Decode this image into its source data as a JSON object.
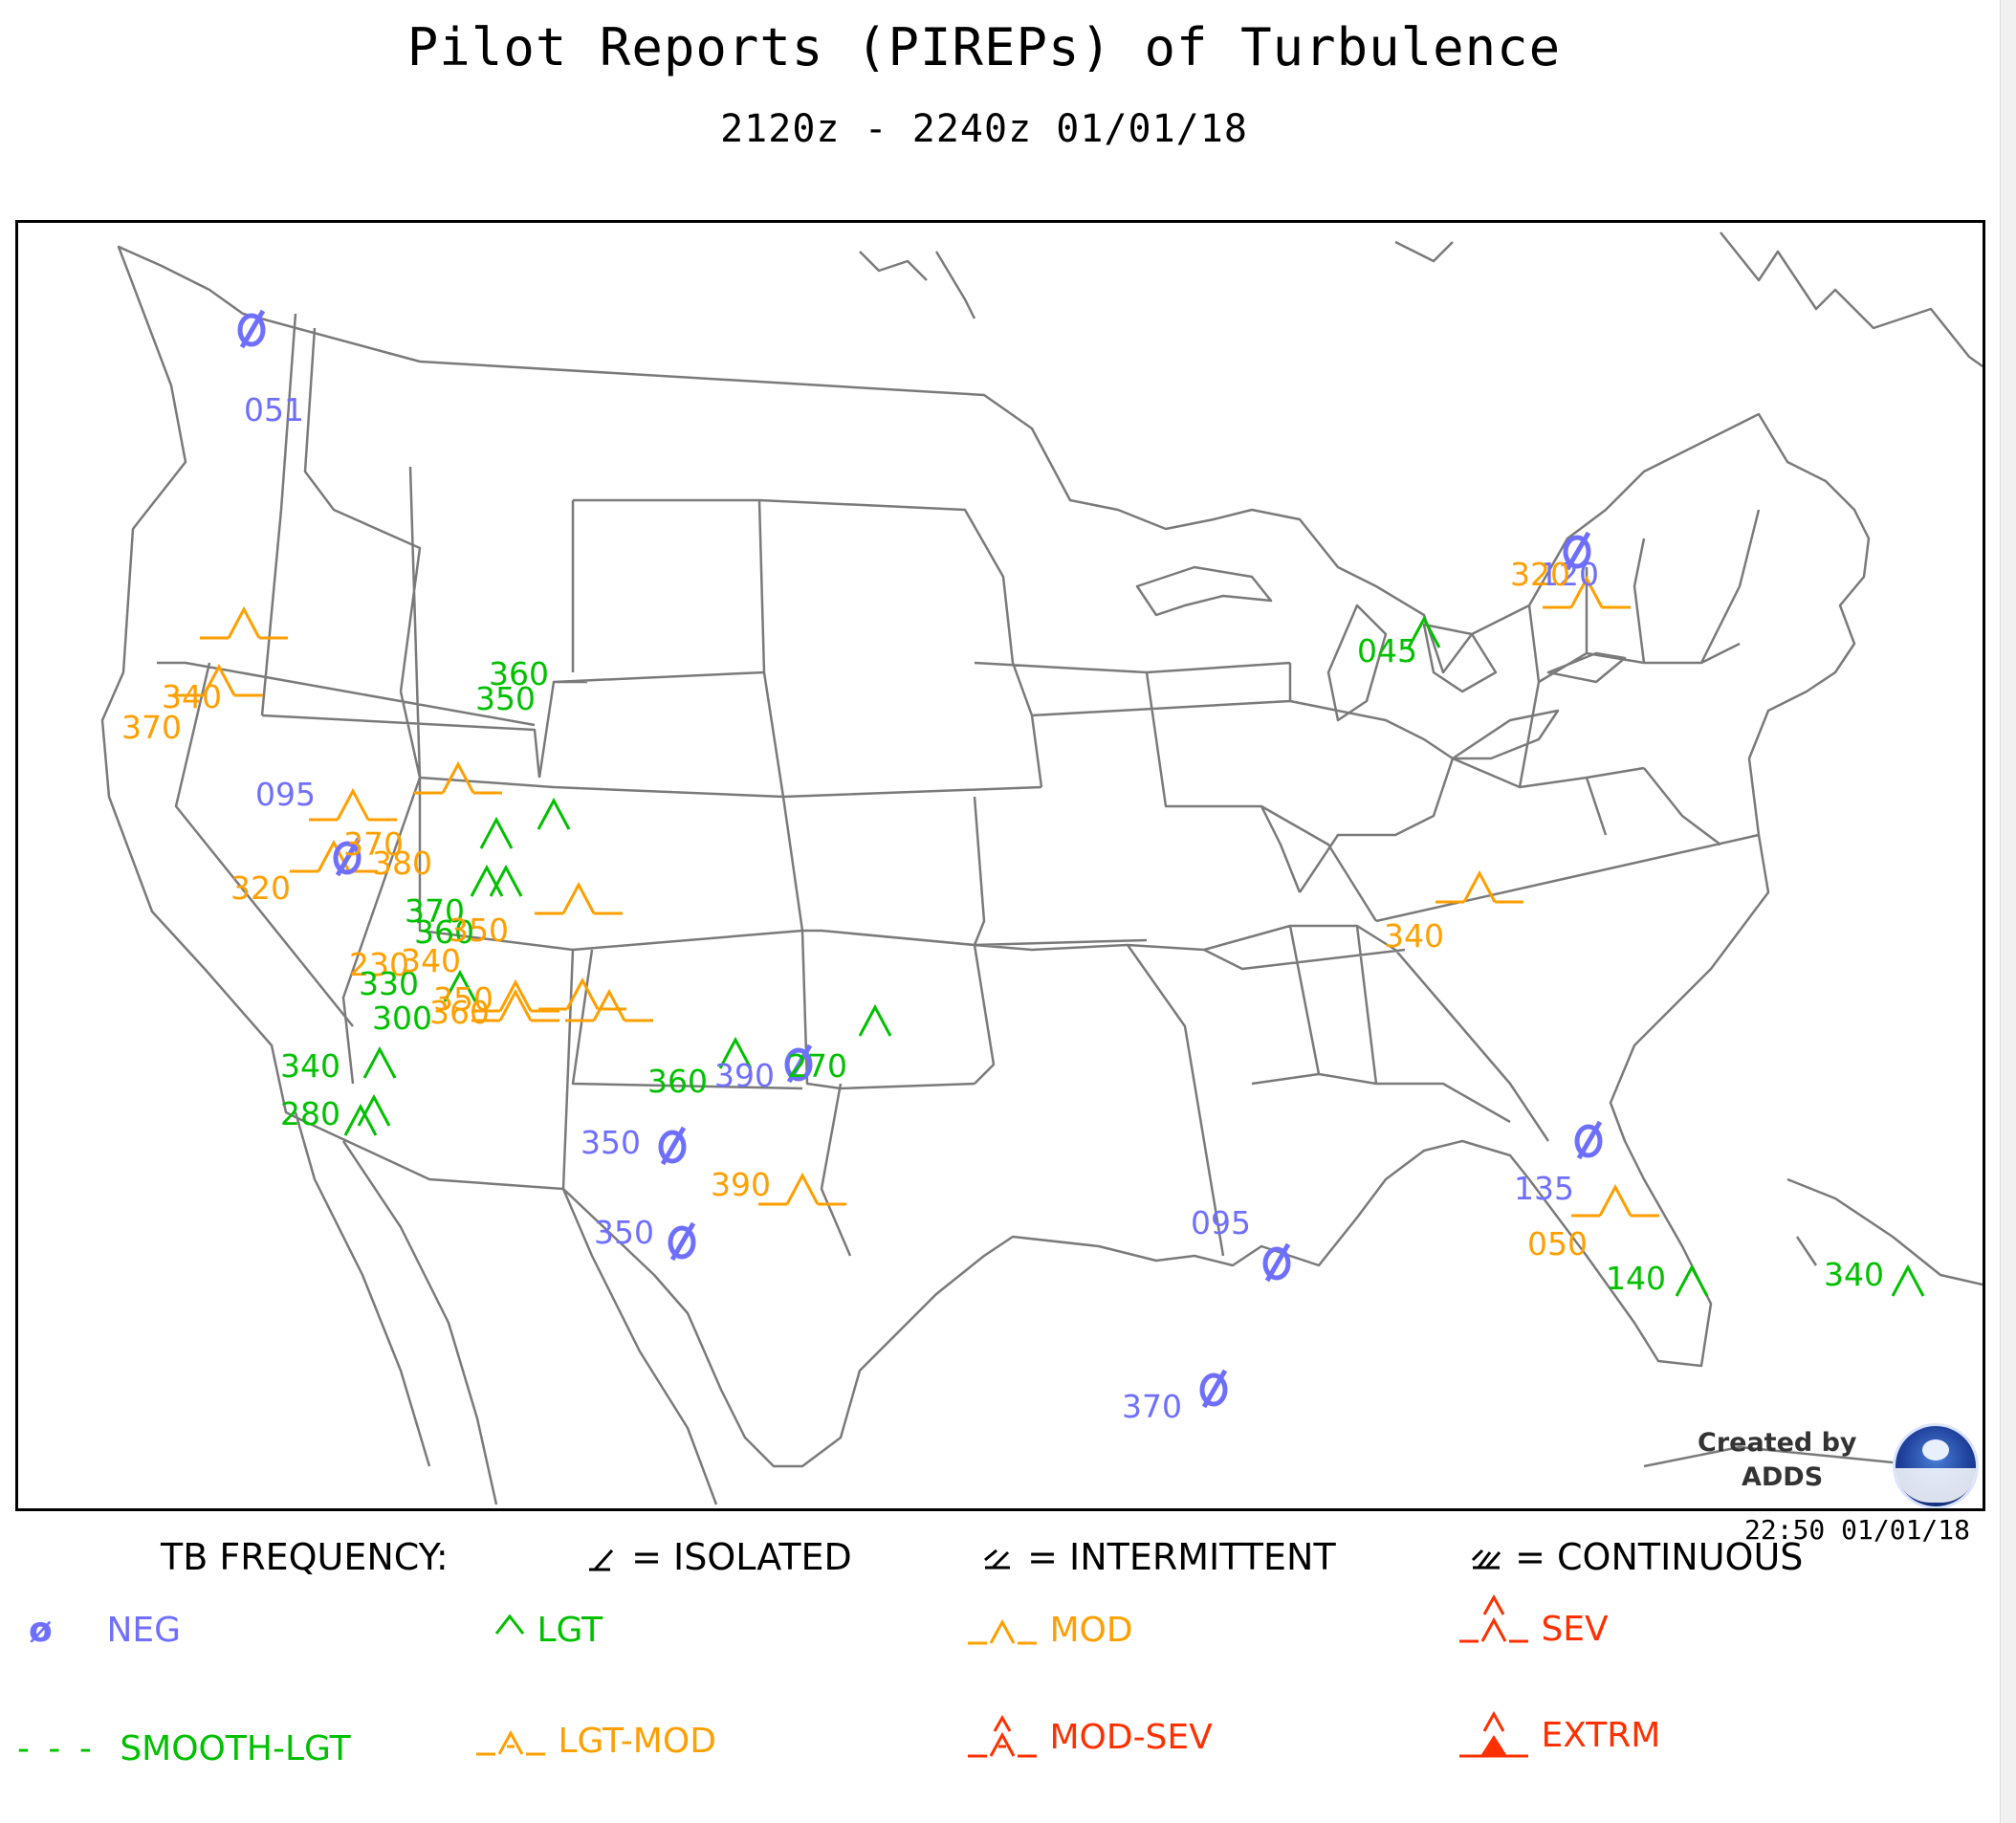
{
  "title": "Pilot Reports (PIREPs) of Turbulence",
  "subtitle": "2120z - 2240z  01/01/18",
  "created_by_line1": "Created by",
  "created_by_line2": "ADDS",
  "timestamp": "22:50 01/01/18",
  "colors": {
    "neg": "#6f6fff",
    "lgt": "#00c000",
    "mod": "#ff9f00",
    "sev": "#ff3000",
    "border": "#7a7a7a"
  },
  "legend": {
    "frequency_label": "TB FREQUENCY:",
    "isolated": "= ISOLATED",
    "intermittent": "= INTERMITTENT",
    "continuous": "= CONTINUOUS",
    "neg": "NEG",
    "lgt": "LGT",
    "mod": "MOD",
    "sev": "SEV",
    "smooth_lgt": "SMOOTH-LGT",
    "lgt_mod": "LGT-MOD",
    "mod_sev": "MOD-SEV",
    "extrm": "EXTRM"
  },
  "reports": [
    {
      "type": "neg",
      "label": "051"
    },
    {
      "type": "neg",
      "label": "120"
    },
    {
      "type": "mod",
      "label": "320"
    },
    {
      "type": "lgt",
      "label": "045"
    },
    {
      "type": "mod",
      "label": "340"
    },
    {
      "type": "mod",
      "label": "370"
    },
    {
      "type": "mod",
      "label": "370"
    },
    {
      "type": "mod",
      "label": "380"
    },
    {
      "type": "mod",
      "label": "320"
    },
    {
      "type": "neg",
      "label": "095"
    },
    {
      "type": "lgt",
      "label": "360"
    },
    {
      "type": "lgt",
      "label": "350"
    },
    {
      "type": "lgt",
      "label": "370"
    },
    {
      "type": "lgt",
      "label": "360"
    },
    {
      "type": "mod",
      "label": "350"
    },
    {
      "type": "mod",
      "label": "230"
    },
    {
      "type": "lgt",
      "label": "330"
    },
    {
      "type": "mod",
      "label": "340"
    },
    {
      "type": "mod",
      "label": "350"
    },
    {
      "type": "mod",
      "label": "360"
    },
    {
      "type": "lgt",
      "label": "300"
    },
    {
      "type": "lgt",
      "label": "340"
    },
    {
      "type": "lgt",
      "label": "280"
    },
    {
      "type": "lgt",
      "label": "360"
    },
    {
      "type": "neg",
      "label": "390"
    },
    {
      "type": "lgt",
      "label": "270"
    },
    {
      "type": "neg",
      "label": "350"
    },
    {
      "type": "mod",
      "label": "390"
    },
    {
      "type": "neg",
      "label": "350"
    },
    {
      "type": "neg",
      "label": "095"
    },
    {
      "type": "neg",
      "label": "135"
    },
    {
      "type": "mod",
      "label": "050"
    },
    {
      "type": "lgt",
      "label": "140"
    },
    {
      "type": "lgt",
      "label": "340"
    },
    {
      "type": "neg",
      "label": "370"
    },
    {
      "type": "mod",
      "label": "340"
    }
  ]
}
